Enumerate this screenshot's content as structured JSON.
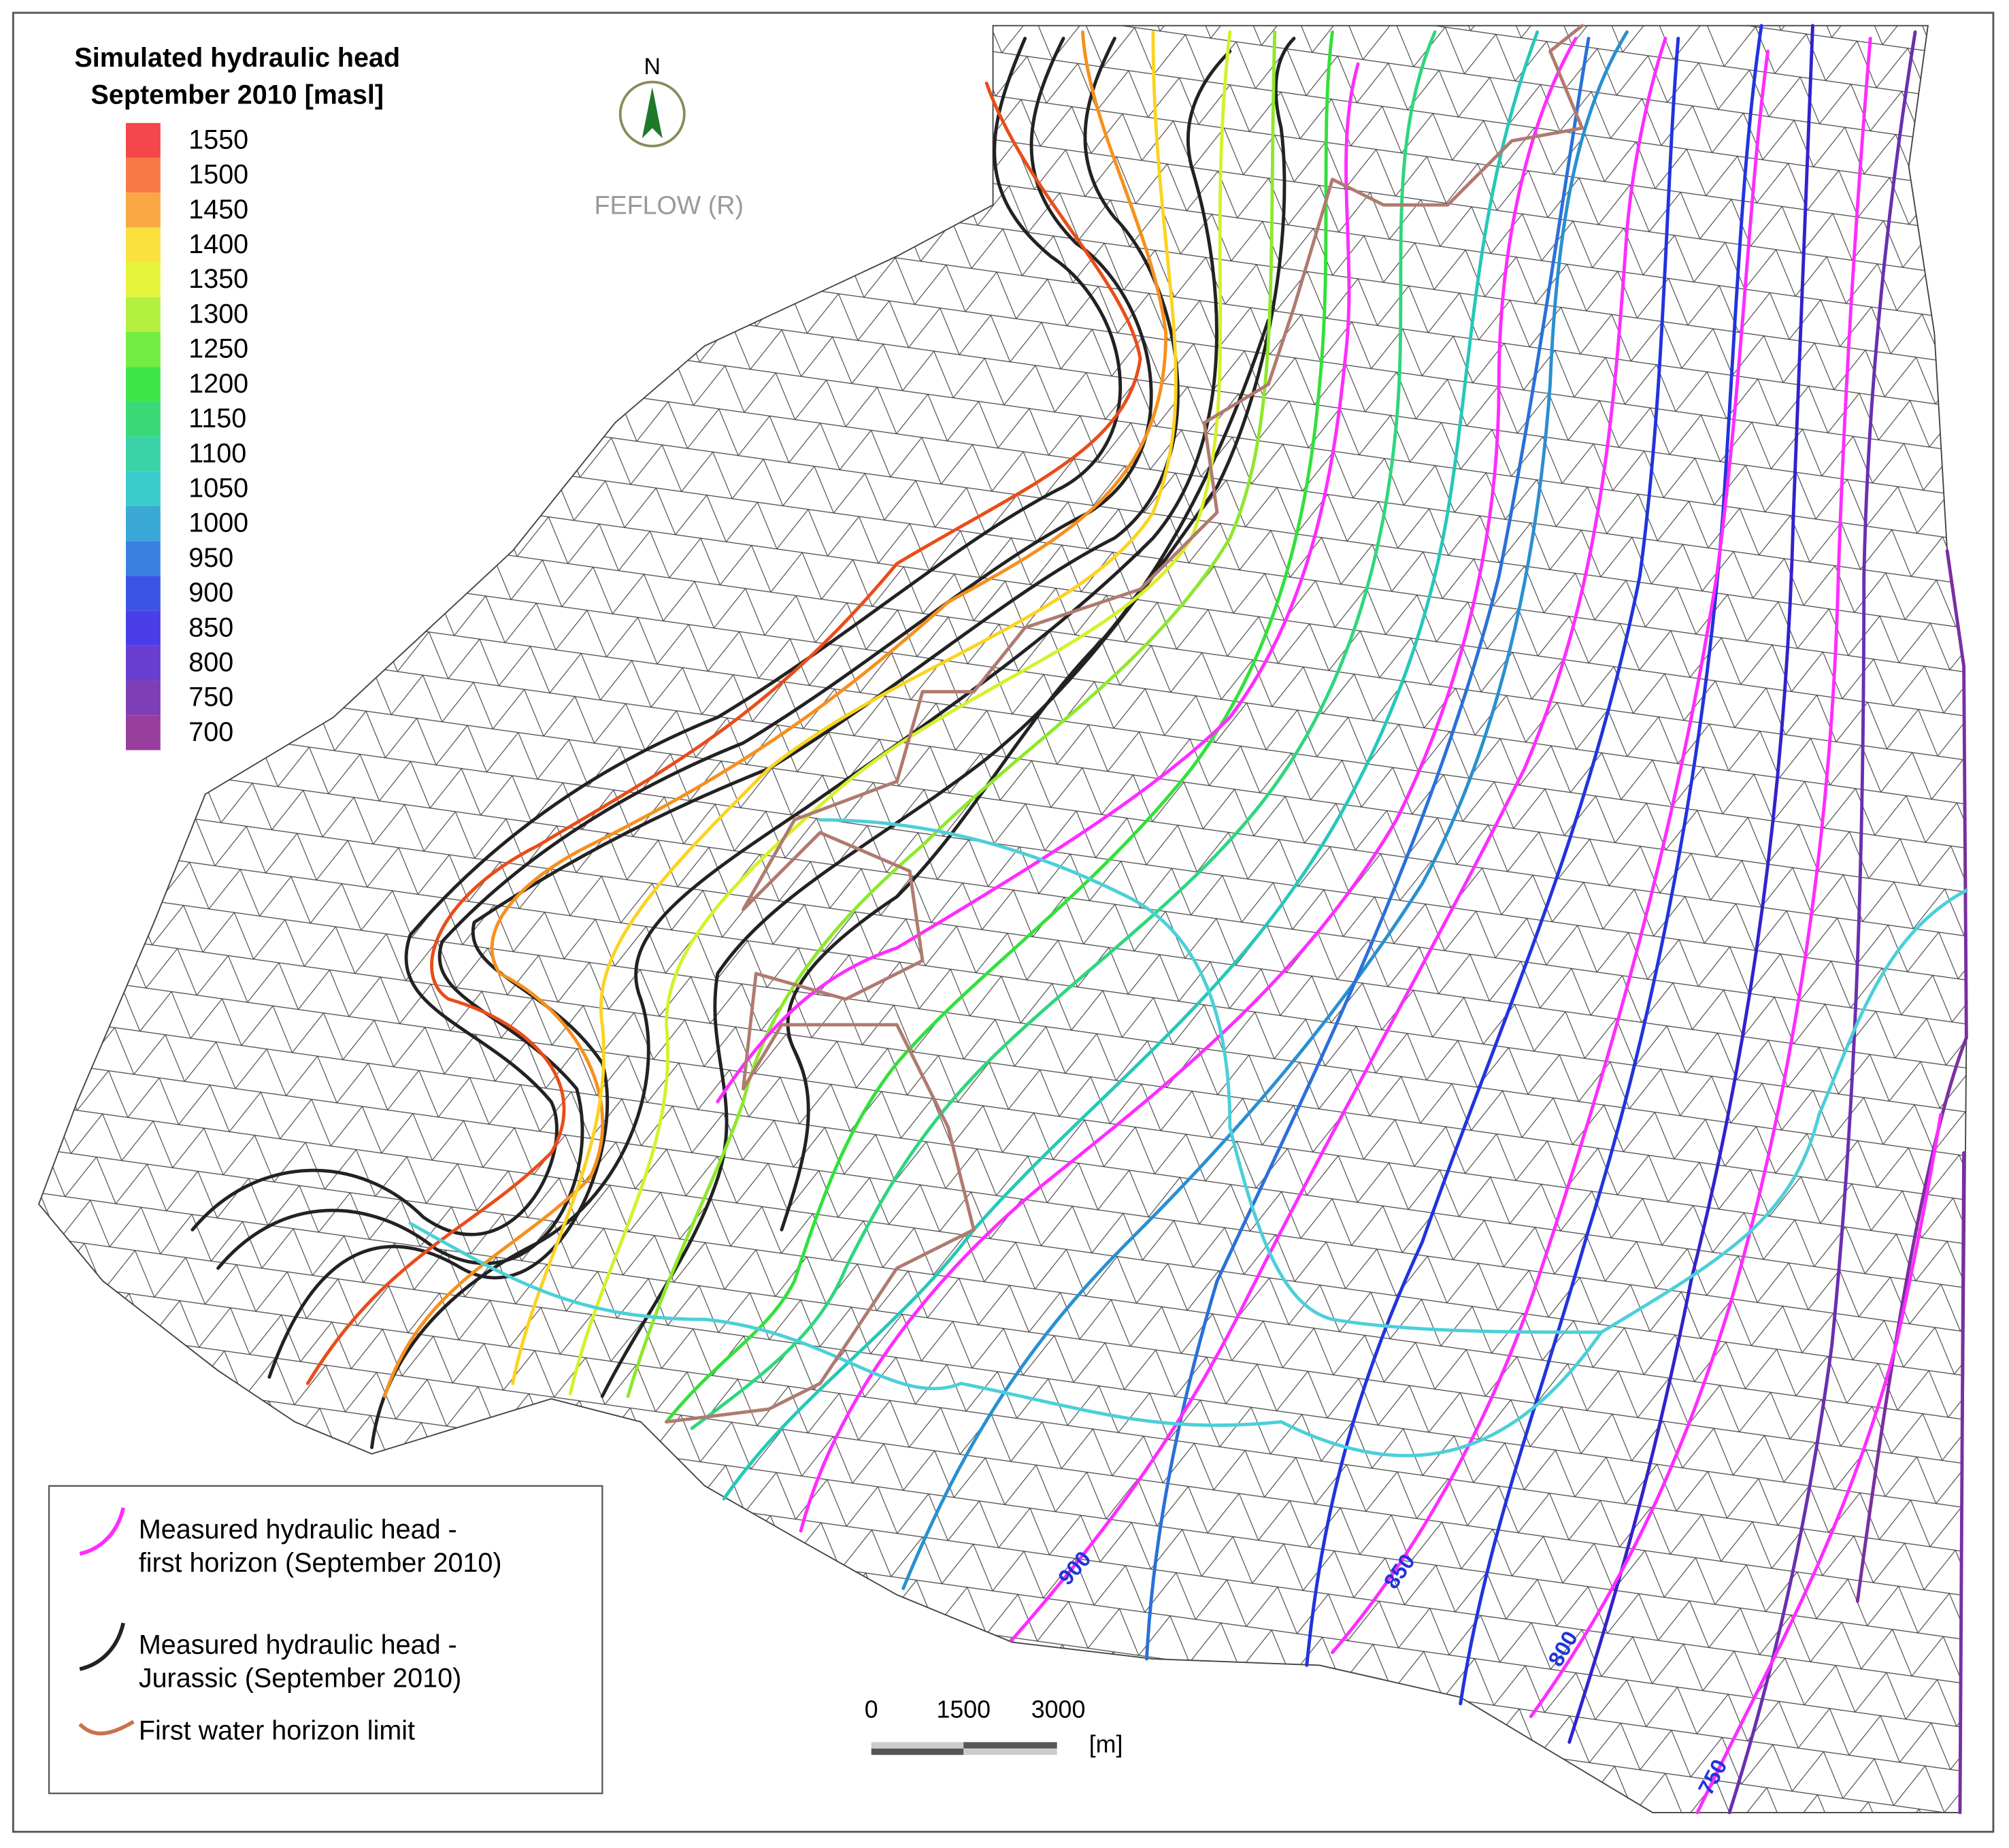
{
  "legend": {
    "title_line1": "Simulated hydraulic head",
    "title_line2": "September 2010 [masl]",
    "scale": [
      {
        "label": 1550,
        "color": "#f5464c"
      },
      {
        "label": 1500,
        "color": "#f77a46"
      },
      {
        "label": 1450,
        "color": "#f9a845"
      },
      {
        "label": 1400,
        "color": "#fbe03e"
      },
      {
        "label": 1350,
        "color": "#e6f53c"
      },
      {
        "label": 1300,
        "color": "#b3f040"
      },
      {
        "label": 1250,
        "color": "#74ec44"
      },
      {
        "label": 1200,
        "color": "#3ee64a"
      },
      {
        "label": 1150,
        "color": "#3ad978"
      },
      {
        "label": 1100,
        "color": "#3ad3a8"
      },
      {
        "label": 1050,
        "color": "#3acccc"
      },
      {
        "label": 1000,
        "color": "#3aa9d8"
      },
      {
        "label": 950,
        "color": "#3a80e0"
      },
      {
        "label": 900,
        "color": "#3a55e6"
      },
      {
        "label": 850,
        "color": "#4a3ee8"
      },
      {
        "label": 800,
        "color": "#6a3ed0"
      },
      {
        "label": 750,
        "color": "#7e3eb4"
      },
      {
        "label": 700,
        "color": "#9a3e9e"
      }
    ]
  },
  "north": "N",
  "software": "FEFLOW (R)",
  "key": [
    {
      "label_line1": "Measured hydraulic head -",
      "label_line2": "first horizon (September 2010)",
      "color": "#ff2cff"
    },
    {
      "label_line1": "Measured hydraulic head -",
      "label_line2": "Jurassic (September 2010)",
      "color": "#222222"
    },
    {
      "label_line1": "First water horizon limit",
      "color": "#c9734e"
    }
  ],
  "scale_bar": {
    "ticks": [
      0,
      1500,
      3000
    ],
    "unit": "[m]"
  },
  "contour_labels": [
    900,
    850,
    800,
    750
  ]
}
